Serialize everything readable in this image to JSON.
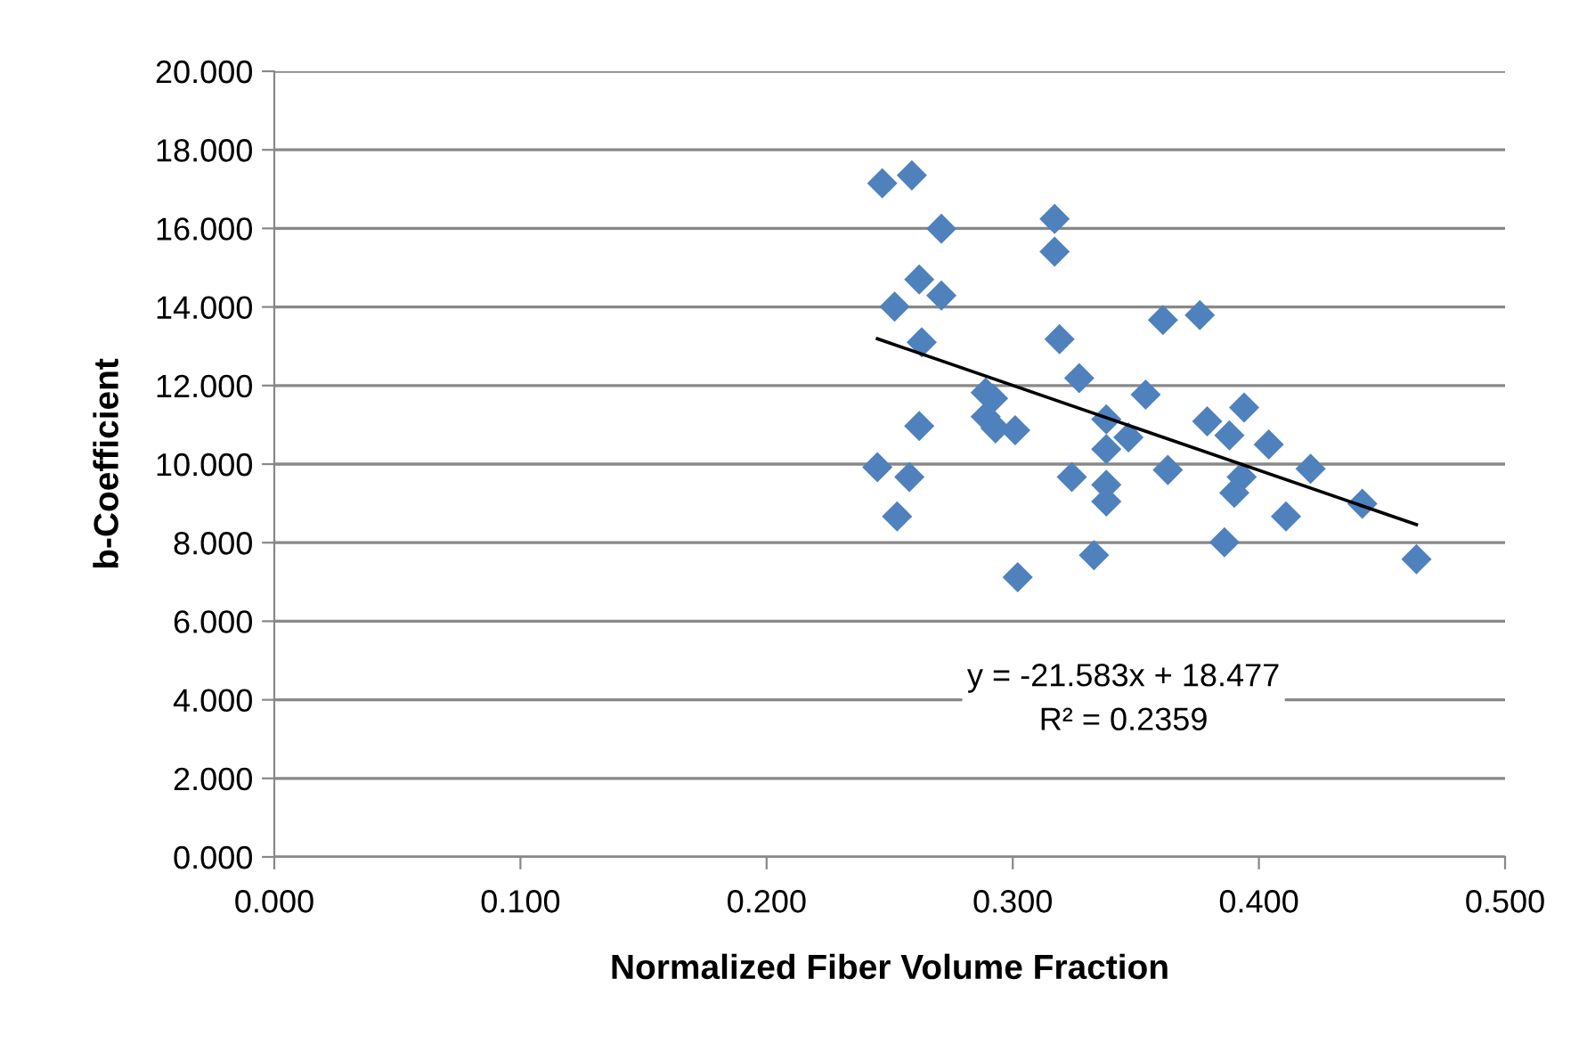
{
  "chart_data": {
    "type": "scatter",
    "xlabel": "Normalized Fiber Volume Fraction",
    "ylabel": "b-Coefficient",
    "marker": "diamond",
    "grid": "y",
    "legend": false,
    "xlim": [
      0,
      0.5
    ],
    "ylim": [
      0,
      20
    ],
    "xticks": [
      {
        "value": 0,
        "label": "0.000"
      },
      {
        "value": 0.1,
        "label": "0.100"
      },
      {
        "value": 0.2,
        "label": "0.200"
      },
      {
        "value": 0.3,
        "label": "0.300"
      },
      {
        "value": 0.4,
        "label": "0.400"
      },
      {
        "value": 0.5,
        "label": "0.500"
      }
    ],
    "yticks": [
      {
        "value": 0,
        "label": "0.000"
      },
      {
        "value": 2,
        "label": "2.000"
      },
      {
        "value": 4,
        "label": "4.000"
      },
      {
        "value": 6,
        "label": "6.000"
      },
      {
        "value": 8,
        "label": "8.000"
      },
      {
        "value": 10,
        "label": "10.000"
      },
      {
        "value": 12,
        "label": "12.000"
      },
      {
        "value": 14,
        "label": "14.000"
      },
      {
        "value": 16,
        "label": "16.000"
      },
      {
        "value": 18,
        "label": "18.000"
      },
      {
        "value": 20,
        "label": "20.000"
      }
    ],
    "series": [
      {
        "color": "#4f81bd",
        "x": [
          0.247,
          0.259,
          0.271,
          0.262,
          0.252,
          0.271,
          0.263,
          0.317,
          0.317,
          0.319,
          0.327,
          0.289,
          0.292,
          0.289,
          0.293,
          0.301,
          0.262,
          0.245,
          0.258,
          0.253,
          0.302,
          0.333,
          0.324,
          0.338,
          0.338,
          0.347,
          0.338,
          0.338,
          0.354,
          0.361,
          0.363,
          0.376,
          0.379,
          0.394,
          0.388,
          0.404,
          0.393,
          0.39,
          0.411,
          0.421,
          0.442,
          0.386,
          0.464
        ],
        "values": [
          17.15,
          17.35,
          15.99,
          14.7,
          14.01,
          14.29,
          13.1,
          16.24,
          15.41,
          13.18,
          12.19,
          11.82,
          11.67,
          11.21,
          10.91,
          10.86,
          10.97,
          9.92,
          9.67,
          8.67,
          7.12,
          7.68,
          9.67,
          11.14,
          10.38,
          10.68,
          9.47,
          9.05,
          11.77,
          13.67,
          9.85,
          13.79,
          11.09,
          11.44,
          10.73,
          10.5,
          9.67,
          9.27,
          8.67,
          9.88,
          8.99,
          8.01,
          7.58
        ]
      },
      {
        "type": "line",
        "color": "#000000",
        "marker": "none",
        "x": [
          0.245,
          0.464
        ],
        "values": [
          13.19,
          8.46
        ]
      }
    ],
    "annotations": [
      "y = -21.583x + 18.477\nR² = 0.2359"
    ]
  }
}
